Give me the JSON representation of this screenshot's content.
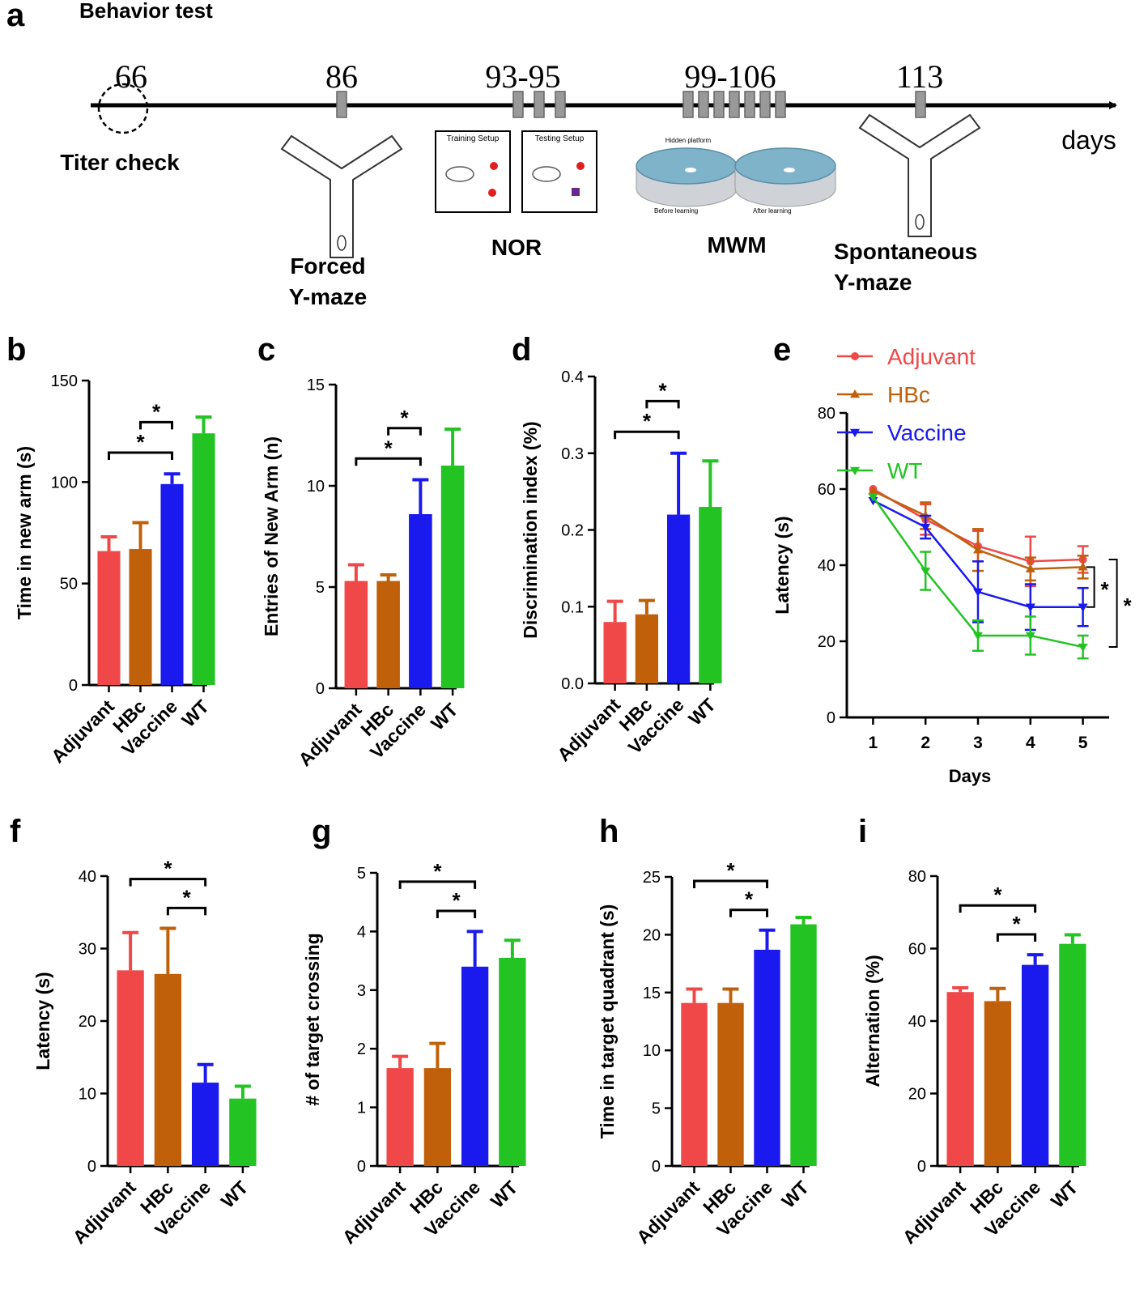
{
  "timeline": {
    "label": "a",
    "title": "Behavior test",
    "unit": "days",
    "events": [
      {
        "day": "66",
        "activity": [
          "Titer check"
        ]
      },
      {
        "day": "86",
        "activity": [
          "Forced",
          "Y-maze"
        ]
      },
      {
        "day": "93-95",
        "activity": [
          "NOR"
        ],
        "images": [
          "Training Setup",
          "Testing Setup"
        ]
      },
      {
        "day": "99-106",
        "activity": [
          "MWM"
        ],
        "images": [
          "Hidden platform",
          "Before learning",
          "After learning"
        ]
      },
      {
        "day": "113",
        "activity": [
          "Spontaneous",
          "Y-maze"
        ]
      }
    ]
  },
  "chart_data": [
    {
      "type": "bar",
      "panel": "b",
      "categories": [
        "Adjuvant",
        "HBc",
        "Vaccine",
        "WT"
      ],
      "colors": [
        "#f04848",
        "#c0600a",
        "#1a1aee",
        "#22c322"
      ],
      "values": [
        66,
        67,
        99,
        124
      ],
      "errors": [
        7,
        13,
        5,
        8
      ],
      "ylim": [
        0,
        150
      ],
      "yticks": [
        0,
        50,
        100,
        150
      ],
      "ylabel": "Time in new arm (s)",
      "significance": [
        {
          "between": [
            "Adjuvant",
            "Vaccine"
          ],
          "label": "*"
        },
        {
          "between": [
            "HBc",
            "Vaccine"
          ],
          "label": "*"
        }
      ]
    },
    {
      "type": "bar",
      "panel": "c",
      "categories": [
        "Adjuvant",
        "HBc",
        "Vaccine",
        "WT"
      ],
      "colors": [
        "#f04848",
        "#c0600a",
        "#1a1aee",
        "#22c322"
      ],
      "values": [
        5.3,
        5.3,
        8.6,
        11
      ],
      "errors": [
        0.8,
        0.3,
        1.7,
        1.8
      ],
      "ylim": [
        0,
        15
      ],
      "yticks": [
        0,
        5,
        10,
        15
      ],
      "ylabel": "Entries of New Arm (n)",
      "significance": [
        {
          "between": [
            "Adjuvant",
            "Vaccine"
          ],
          "label": "*"
        },
        {
          "between": [
            "HBc",
            "Vaccine"
          ],
          "label": "*"
        }
      ]
    },
    {
      "type": "bar",
      "panel": "d",
      "categories": [
        "Adjuvant",
        "HBc",
        "Vaccine",
        "WT"
      ],
      "colors": [
        "#f04848",
        "#c0600a",
        "#1a1aee",
        "#22c322"
      ],
      "values": [
        0.08,
        0.09,
        0.22,
        0.23
      ],
      "errors": [
        0.027,
        0.018,
        0.08,
        0.06
      ],
      "ylim": [
        0,
        0.4
      ],
      "yticks": [
        {
          "value": 0,
          "label": "0.0"
        },
        0.1,
        0.2,
        0.3,
        0.4
      ],
      "ylabel": "Discrimination index (%)",
      "significance": [
        {
          "between": [
            "Adjuvant",
            "Vaccine"
          ],
          "label": "*"
        },
        {
          "between": [
            "HBc",
            "Vaccine"
          ],
          "label": "*"
        }
      ]
    },
    {
      "type": "line",
      "panel": "e",
      "x": [
        1,
        2,
        3,
        4,
        5
      ],
      "xlim": [
        0.5,
        5.5
      ],
      "xticks": [
        1,
        2,
        3,
        4,
        5
      ],
      "ylim": [
        0,
        80
      ],
      "yticks": [
        0,
        20,
        40,
        60,
        80
      ],
      "xlabel": "Days",
      "ylabel": "Latency (s)",
      "series": [
        {
          "name": "Adjuvant",
          "color": "#f04848",
          "marker": "circle",
          "values": [
            60,
            52,
            45,
            41,
            41.5
          ],
          "errors": [
            0,
            4,
            4,
            6.5,
            3.5
          ]
        },
        {
          "name": "HBc",
          "color": "#c0600a",
          "marker": "triangle-up",
          "values": [
            59.5,
            53,
            44,
            39,
            39.5
          ],
          "errors": [
            0,
            3.5,
            5.5,
            3,
            3
          ]
        },
        {
          "name": "Vaccine",
          "color": "#1a1aee",
          "marker": "triangle-down",
          "values": [
            57,
            50,
            33,
            29,
            29
          ],
          "errors": [
            0,
            3,
            8,
            6,
            5
          ]
        },
        {
          "name": "WT",
          "color": "#22c322",
          "marker": "triangle-down",
          "values": [
            58,
            38.5,
            21.5,
            21.5,
            18.5
          ],
          "errors": [
            0,
            5,
            4,
            5,
            3
          ]
        }
      ],
      "significance": [
        {
          "between": [
            "HBc",
            "Vaccine"
          ],
          "label": "*"
        },
        {
          "between": [
            "Adjuvant",
            "WT"
          ],
          "label": "*"
        }
      ]
    },
    {
      "type": "bar",
      "panel": "f",
      "categories": [
        "Adjuvant",
        "HBc",
        "Vaccine",
        "WT"
      ],
      "colors": [
        "#f04848",
        "#c0600a",
        "#1a1aee",
        "#22c322"
      ],
      "values": [
        27,
        26.5,
        11.5,
        9.3
      ],
      "errors": [
        5.2,
        6.3,
        2.5,
        1.7
      ],
      "ylim": [
        0,
        40
      ],
      "yticks": [
        0,
        10,
        20,
        30,
        40
      ],
      "ylabel": "Latency (s)",
      "significance": [
        {
          "between": [
            "HBc",
            "Vaccine"
          ],
          "label": "*"
        },
        {
          "between": [
            "Adjuvant",
            "Vaccine"
          ],
          "label": "*"
        }
      ]
    },
    {
      "type": "bar",
      "panel": "g",
      "categories": [
        "Adjuvant",
        "HBc",
        "Vaccine",
        "WT"
      ],
      "colors": [
        "#f04848",
        "#c0600a",
        "#1a1aee",
        "#22c322"
      ],
      "values": [
        1.67,
        1.67,
        3.4,
        3.55
      ],
      "errors": [
        0.2,
        0.42,
        0.6,
        0.3
      ],
      "ylim": [
        0,
        5
      ],
      "yticks": [
        0,
        1,
        2,
        3,
        4,
        5
      ],
      "ylabel": "# of target crossing",
      "significance": [
        {
          "between": [
            "HBc",
            "Vaccine"
          ],
          "label": "*"
        },
        {
          "between": [
            "Adjuvant",
            "Vaccine"
          ],
          "label": "*"
        }
      ]
    },
    {
      "type": "bar",
      "panel": "h",
      "categories": [
        "Adjuvant",
        "HBc",
        "Vaccine",
        "WT"
      ],
      "colors": [
        "#f04848",
        "#c0600a",
        "#1a1aee",
        "#22c322"
      ],
      "values": [
        14.1,
        14.1,
        18.7,
        20.9
      ],
      "errors": [
        1.2,
        1.2,
        1.7,
        0.6
      ],
      "ylim": [
        0,
        25
      ],
      "yticks": [
        0,
        5,
        10,
        15,
        20,
        25
      ],
      "ylabel": "Time in target quadrant (s)",
      "significance": [
        {
          "between": [
            "HBc",
            "Vaccine"
          ],
          "label": "*"
        },
        {
          "between": [
            "Adjuvant",
            "Vaccine"
          ],
          "label": "*"
        }
      ]
    },
    {
      "type": "bar",
      "panel": "i",
      "categories": [
        "Adjuvant",
        "HBc",
        "Vaccine",
        "WT"
      ],
      "colors": [
        "#f04848",
        "#c0600a",
        "#1a1aee",
        "#22c322"
      ],
      "values": [
        48,
        45.5,
        55.5,
        61.3
      ],
      "errors": [
        1.2,
        3.5,
        2.8,
        2.5
      ],
      "ylim": [
        0,
        80
      ],
      "yticks": [
        0,
        20,
        40,
        60,
        80
      ],
      "ylabel": "Alternation (%)",
      "significance": [
        {
          "between": [
            "HBc",
            "Vaccine"
          ],
          "label": "*"
        },
        {
          "between": [
            "Adjuvant",
            "Vaccine"
          ],
          "label": "*"
        }
      ]
    }
  ]
}
